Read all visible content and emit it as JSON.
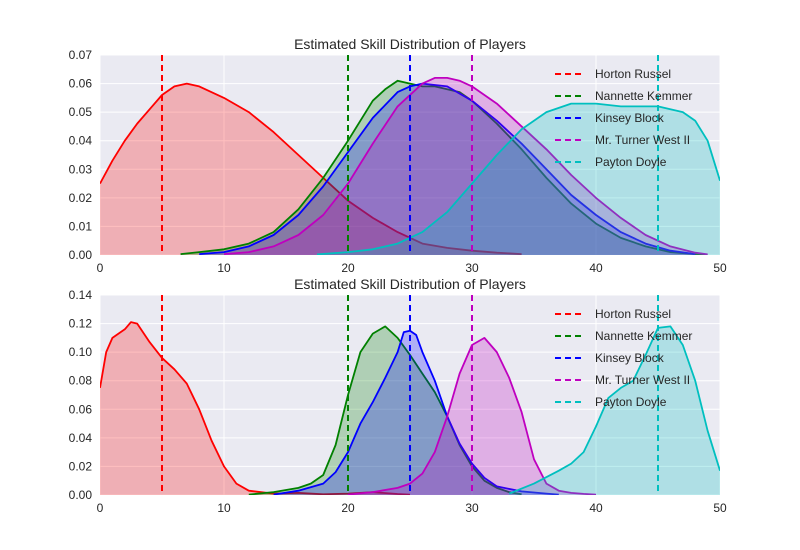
{
  "chart_data": [
    {
      "type": "area",
      "title": "Estimated Skill Distribution of Players",
      "xlabel": "",
      "ylabel": "",
      "xlim": [
        0,
        50
      ],
      "ylim": [
        0,
        0.07
      ],
      "xticks": [
        0,
        10,
        20,
        30,
        40,
        50
      ],
      "xtick_labels": [
        "0",
        "10",
        "20",
        "30",
        "40",
        "50"
      ],
      "yticks": [
        0,
        0.01,
        0.02,
        0.03,
        0.04,
        0.05,
        0.06,
        0.07
      ],
      "ytick_labels": [
        "0.00",
        "0.01",
        "0.02",
        "0.03",
        "0.04",
        "0.05",
        "0.06",
        "0.07"
      ],
      "grid": true,
      "legend_position": "top-right",
      "series": [
        {
          "name": "Horton Russel",
          "color": "#ff0000",
          "marker": 5,
          "x": [
            0,
            1,
            2,
            3,
            4,
            5,
            6,
            7,
            8,
            10,
            12,
            14,
            16,
            18,
            20,
            22,
            24,
            26,
            28,
            30,
            32,
            34
          ],
          "y": [
            0.025,
            0.033,
            0.04,
            0.046,
            0.051,
            0.056,
            0.059,
            0.06,
            0.059,
            0.055,
            0.05,
            0.043,
            0.035,
            0.027,
            0.019,
            0.013,
            0.008,
            0.004,
            0.0025,
            0.0015,
            0.0008,
            0.0003
          ]
        },
        {
          "name": "Nannette Kemmer",
          "color": "#008000",
          "marker": 20,
          "x": [
            6.5,
            8,
            10,
            12,
            14,
            16,
            18,
            20,
            21,
            22,
            23,
            24,
            25,
            26,
            27,
            28,
            29,
            30,
            32,
            34,
            36,
            38,
            40,
            42,
            44,
            46,
            48,
            49
          ],
          "y": [
            0.0003,
            0.001,
            0.002,
            0.004,
            0.008,
            0.016,
            0.027,
            0.04,
            0.047,
            0.054,
            0.058,
            0.061,
            0.06,
            0.059,
            0.059,
            0.058,
            0.057,
            0.054,
            0.046,
            0.037,
            0.027,
            0.018,
            0.011,
            0.006,
            0.003,
            0.001,
            0.0003,
            0.0001
          ]
        },
        {
          "name": "Kinsey Block",
          "color": "#0000ff",
          "marker": 25,
          "x": [
            8,
            10,
            12,
            14,
            16,
            18,
            20,
            22,
            24,
            25,
            26,
            28,
            30,
            32,
            34,
            36,
            38,
            40,
            42,
            44,
            46,
            48
          ],
          "y": [
            0.0003,
            0.001,
            0.003,
            0.007,
            0.014,
            0.024,
            0.036,
            0.048,
            0.057,
            0.059,
            0.06,
            0.059,
            0.054,
            0.047,
            0.039,
            0.03,
            0.021,
            0.014,
            0.008,
            0.004,
            0.0015,
            0.0003
          ]
        },
        {
          "name": "Mr. Turner West II",
          "color": "#bf00bf",
          "marker": 30,
          "x": [
            10,
            12,
            14,
            16,
            18,
            20,
            22,
            24,
            26,
            27,
            28,
            29,
            30,
            32,
            34,
            36,
            38,
            40,
            42,
            44,
            46,
            48,
            49
          ],
          "y": [
            0.0003,
            0.001,
            0.003,
            0.007,
            0.014,
            0.025,
            0.039,
            0.052,
            0.06,
            0.062,
            0.062,
            0.061,
            0.059,
            0.053,
            0.045,
            0.037,
            0.028,
            0.02,
            0.013,
            0.007,
            0.003,
            0.0008,
            0.0002
          ]
        },
        {
          "name": "Payton Doyle",
          "color": "#00bfbf",
          "marker": 45,
          "x": [
            17.5,
            20,
            22,
            24,
            26,
            28,
            30,
            32,
            34,
            36,
            38,
            40,
            42,
            44,
            45,
            46,
            47,
            48,
            49,
            50
          ],
          "y": [
            0.0002,
            0.001,
            0.002,
            0.004,
            0.008,
            0.015,
            0.025,
            0.035,
            0.044,
            0.05,
            0.053,
            0.053,
            0.052,
            0.052,
            0.052,
            0.051,
            0.05,
            0.047,
            0.04,
            0.026
          ]
        }
      ]
    },
    {
      "type": "area",
      "title": "Estimated Skill Distribution of Players",
      "xlabel": "",
      "ylabel": "",
      "xlim": [
        0,
        50
      ],
      "ylim": [
        0,
        0.14
      ],
      "xticks": [
        0,
        10,
        20,
        30,
        40,
        50
      ],
      "xtick_labels": [
        "0",
        "10",
        "20",
        "30",
        "40",
        "50"
      ],
      "yticks": [
        0,
        0.02,
        0.04,
        0.06,
        0.08,
        0.1,
        0.12,
        0.14
      ],
      "ytick_labels": [
        "0.00",
        "0.02",
        "0.04",
        "0.06",
        "0.08",
        "0.10",
        "0.12",
        "0.14"
      ],
      "grid": true,
      "legend_position": "top-right",
      "series": [
        {
          "name": "Horton Russel",
          "color": "#ff0000",
          "marker": 5,
          "x": [
            0,
            0.5,
            1,
            2,
            2.5,
            3,
            4,
            5,
            6,
            7,
            8,
            9,
            10,
            11,
            12,
            14,
            16,
            18,
            20,
            22,
            24,
            25
          ],
          "y": [
            0.075,
            0.1,
            0.11,
            0.116,
            0.121,
            0.12,
            0.107,
            0.096,
            0.088,
            0.078,
            0.06,
            0.038,
            0.02,
            0.008,
            0.003,
            0.001,
            0.0015,
            0.0005,
            0.001,
            0.002,
            0.0007,
            0.0003
          ]
        },
        {
          "name": "Nannette Kemmer",
          "color": "#008000",
          "marker": 20,
          "x": [
            12,
            14,
            16,
            17,
            18,
            19,
            20,
            21,
            22,
            23,
            24,
            25,
            26,
            27,
            28,
            29,
            30,
            31,
            32,
            33,
            34
          ],
          "y": [
            0.0003,
            0.002,
            0.005,
            0.008,
            0.014,
            0.035,
            0.07,
            0.1,
            0.113,
            0.118,
            0.11,
            0.098,
            0.085,
            0.072,
            0.055,
            0.035,
            0.02,
            0.01,
            0.005,
            0.002,
            0.0005
          ]
        },
        {
          "name": "Kinsey Block",
          "color": "#0000ff",
          "marker": 25,
          "x": [
            14,
            16,
            18,
            19,
            20,
            21,
            22,
            23,
            24,
            24.5,
            25,
            25.5,
            26,
            27,
            28,
            29,
            30,
            31,
            32,
            34,
            36,
            37
          ],
          "y": [
            0.0003,
            0.003,
            0.008,
            0.016,
            0.03,
            0.05,
            0.065,
            0.082,
            0.1,
            0.114,
            0.115,
            0.112,
            0.1,
            0.08,
            0.055,
            0.036,
            0.022,
            0.012,
            0.006,
            0.0025,
            0.001,
            0.0003
          ]
        },
        {
          "name": "Mr. Turner West II",
          "color": "#bf00bf",
          "marker": 30,
          "x": [
            20,
            22,
            24,
            25,
            26,
            27,
            28,
            29,
            30,
            31,
            32,
            33,
            34,
            35,
            36,
            37,
            38,
            39,
            40
          ],
          "y": [
            0.0003,
            0.002,
            0.005,
            0.008,
            0.015,
            0.03,
            0.055,
            0.085,
            0.105,
            0.11,
            0.1,
            0.082,
            0.058,
            0.025,
            0.008,
            0.003,
            0.0015,
            0.0008,
            0.0003
          ]
        },
        {
          "name": "Payton Doyle",
          "color": "#00bfbf",
          "marker": 45,
          "x": [
            33,
            35,
            37,
            38,
            39,
            40,
            41,
            42,
            43,
            44,
            45,
            46,
            47,
            48,
            49,
            50
          ],
          "y": [
            0.001,
            0.008,
            0.017,
            0.022,
            0.03,
            0.048,
            0.068,
            0.075,
            0.08,
            0.098,
            0.117,
            0.118,
            0.105,
            0.08,
            0.045,
            0.017
          ]
        }
      ]
    }
  ]
}
